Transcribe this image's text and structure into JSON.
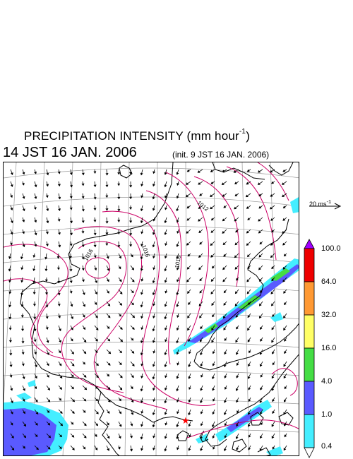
{
  "header": {
    "title": "PRECIPITATION INTENSITY (mm hour",
    "title_exp": "-1",
    "title_close": ")",
    "time": "14 JST 16 JAN. 2006",
    "init": "(init. 9 JST 16 JAN. 2006)"
  },
  "legend": {
    "vector_scale": "20 ms",
    "vector_scale_exp": "-1",
    "color_levels": [
      {
        "label": "100.0",
        "color": "#a000ff"
      },
      {
        "label": "64.0",
        "color": "#ee0000"
      },
      {
        "label": "32.0",
        "color": "#ff9933"
      },
      {
        "label": "16.0",
        "color": "#ffff66"
      },
      {
        "label": "4.0",
        "color": "#44dd44"
      },
      {
        "label": "1.0",
        "color": "#5a5aff"
      },
      {
        "label": "0.4",
        "color": "#44eeff"
      }
    ],
    "bins": [
      {
        "range": "64.0-100.0",
        "color": "#ee0000"
      },
      {
        "range": "32.0-64.0",
        "color": "#ff9933"
      },
      {
        "range": "16.0-32.0",
        "color": "#ffff66"
      },
      {
        "range": "4.0-16.0",
        "color": "#44dd44"
      },
      {
        "range": "1.0-4.0",
        "color": "#5a5aff"
      },
      {
        "range": "0.4-1.0",
        "color": "#44eeff"
      }
    ],
    "top_arrow_color": "#a000ff",
    "bottom_arrow_color": "#ffffff"
  },
  "map": {
    "isobar_labels": [
      "1016",
      "1016",
      "1016",
      "1012"
    ],
    "contour_color": "#cc0066",
    "coast_color": "#000000",
    "grid_color": "#999999",
    "marker": {
      "symbol": "★",
      "color": "#ff0000"
    }
  }
}
